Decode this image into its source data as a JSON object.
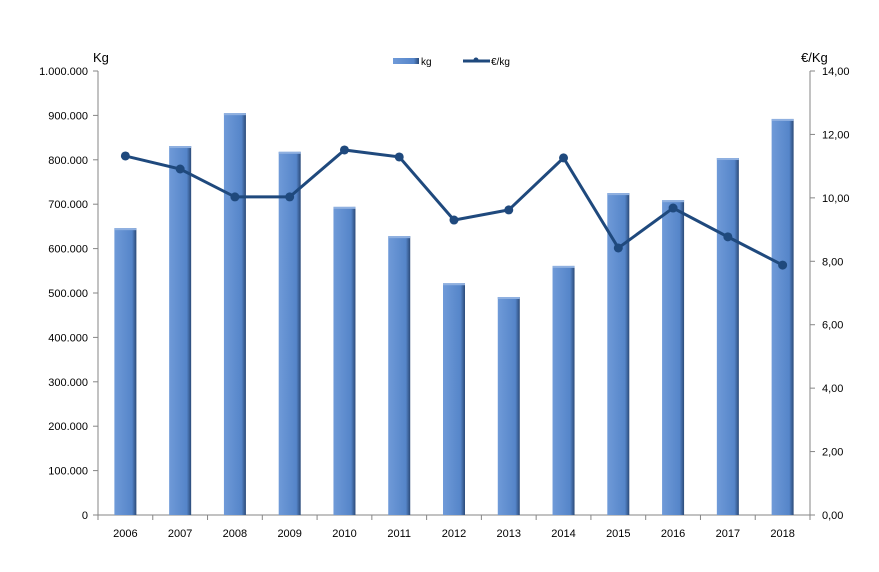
{
  "chart_data": {
    "type": "bar+line",
    "categories": [
      "2006",
      "2007",
      "2008",
      "2009",
      "2010",
      "2011",
      "2012",
      "2013",
      "2014",
      "2015",
      "2016",
      "2017",
      "2018"
    ],
    "series": [
      {
        "name": "kg",
        "type": "bar",
        "axis": "left",
        "values": [
          646000,
          831000,
          905000,
          818000,
          694000,
          628000,
          522000,
          491000,
          561000,
          725000,
          709000,
          804000,
          892000
        ]
      },
      {
        "name": "€/kg",
        "type": "line",
        "axis": "right",
        "values": [
          11.32,
          10.91,
          10.03,
          10.03,
          11.51,
          11.29,
          9.3,
          9.62,
          11.26,
          8.42,
          9.68,
          8.77,
          7.88
        ]
      }
    ],
    "ylabel": "Kg",
    "y2label": "€/Kg",
    "ylim": [
      0,
      1000000
    ],
    "y2lim": [
      0,
      14
    ],
    "yticks": [
      "0",
      "100.000",
      "200.000",
      "300.000",
      "400.000",
      "500.000",
      "600.000",
      "700.000",
      "800.000",
      "900.000",
      "1.000.000"
    ],
    "y2ticks": [
      "0,00",
      "2,00",
      "4,00",
      "6,00",
      "8,00",
      "10,00",
      "12,00",
      "14,00"
    ],
    "legend_position": "top-center",
    "grid": false,
    "colors": {
      "bar": "#5B8BD0",
      "bar_shade": "#2F4F7A",
      "line": "#1F497D",
      "axis": "#868686"
    }
  }
}
